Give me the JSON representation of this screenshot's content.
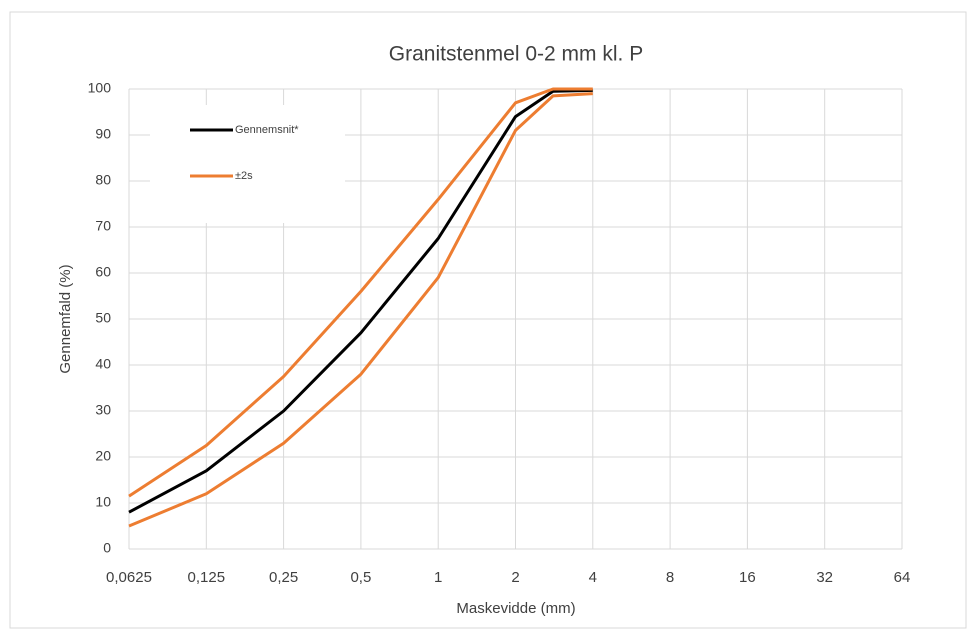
{
  "chart_data": {
    "type": "line",
    "title": "Granitstenmel 0-2 mm  kl. P",
    "x_label": "Maskevidde (mm)",
    "y_label": "Gennemfald (%)",
    "x": [
      0.0625,
      0.125,
      0.25,
      0.5,
      1,
      2,
      2.8,
      4
    ],
    "series": [
      {
        "name": "Gennemsnit*",
        "color": "#000000",
        "values": [
          8,
          17,
          30,
          47,
          67.5,
          94,
          99.5,
          99.7
        ]
      },
      {
        "name": "±2s",
        "color": "#ed7d31",
        "values": [
          11.5,
          22.5,
          37.5,
          56,
          76,
          97,
          100,
          100
        ]
      },
      {
        "color": "#ed7d31",
        "values": [
          5,
          12,
          23,
          38,
          59,
          91,
          98.5,
          99
        ]
      }
    ],
    "xscale": "log",
    "xlim": [
      0.0625,
      64
    ],
    "xticks": [
      {
        "value": 0.0625,
        "label": "0,0625"
      },
      {
        "value": 0.125,
        "label": "0,125"
      },
      {
        "value": 0.25,
        "label": "0,25"
      },
      {
        "value": 0.5,
        "label": "0,5"
      },
      1,
      2,
      4,
      8,
      16,
      32,
      64
    ],
    "ylim": [
      0,
      100
    ],
    "yticks": [
      0,
      10,
      20,
      30,
      40,
      50,
      60,
      70,
      80,
      90,
      100
    ],
    "grid": true,
    "legend": "upper left"
  }
}
